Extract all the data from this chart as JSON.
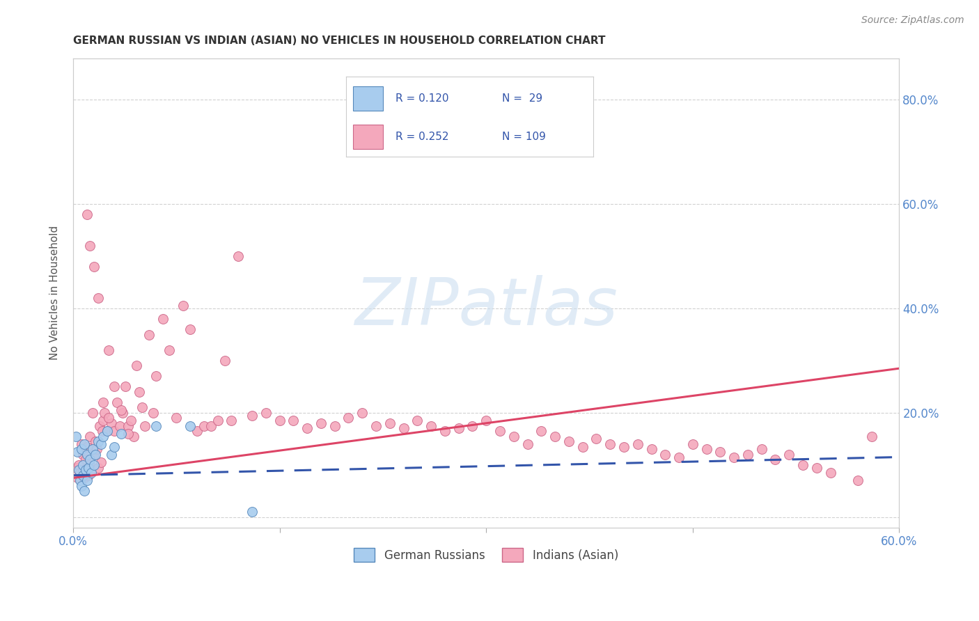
{
  "title": "GERMAN RUSSIAN VS INDIAN (ASIAN) NO VEHICLES IN HOUSEHOLD CORRELATION CHART",
  "source": "Source: ZipAtlas.com",
  "ylabel": "No Vehicles in Household",
  "xlim": [
    0.0,
    0.6
  ],
  "ylim": [
    -0.02,
    0.88
  ],
  "ytick_positions": [
    0.0,
    0.2,
    0.4,
    0.6,
    0.8
  ],
  "ytick_labels": [
    "",
    "20.0%",
    "40.0%",
    "60.0%",
    "80.0%"
  ],
  "xtick_positions": [
    0.0,
    0.15,
    0.3,
    0.45,
    0.6
  ],
  "xtick_labels": [
    "0.0%",
    "",
    "",
    "",
    "60.0%"
  ],
  "watermark": "ZIPatlas",
  "german_russian_x": [
    0.002,
    0.003,
    0.004,
    0.005,
    0.006,
    0.006,
    0.007,
    0.007,
    0.008,
    0.008,
    0.009,
    0.01,
    0.01,
    0.011,
    0.012,
    0.013,
    0.014,
    0.015,
    0.016,
    0.018,
    0.02,
    0.022,
    0.025,
    0.028,
    0.03,
    0.035,
    0.06,
    0.085,
    0.13
  ],
  "german_russian_y": [
    0.155,
    0.125,
    0.09,
    0.07,
    0.13,
    0.06,
    0.1,
    0.08,
    0.14,
    0.05,
    0.09,
    0.07,
    0.12,
    0.095,
    0.11,
    0.085,
    0.13,
    0.1,
    0.12,
    0.145,
    0.14,
    0.155,
    0.165,
    0.12,
    0.135,
    0.16,
    0.175,
    0.175,
    0.01
  ],
  "indian_x": [
    0.002,
    0.003,
    0.004,
    0.005,
    0.006,
    0.007,
    0.007,
    0.008,
    0.009,
    0.01,
    0.01,
    0.011,
    0.012,
    0.012,
    0.013,
    0.014,
    0.015,
    0.016,
    0.017,
    0.018,
    0.019,
    0.02,
    0.021,
    0.022,
    0.023,
    0.025,
    0.026,
    0.028,
    0.03,
    0.032,
    0.034,
    0.036,
    0.038,
    0.04,
    0.042,
    0.044,
    0.046,
    0.048,
    0.05,
    0.052,
    0.055,
    0.058,
    0.06,
    0.065,
    0.07,
    0.075,
    0.08,
    0.085,
    0.09,
    0.095,
    0.1,
    0.105,
    0.11,
    0.115,
    0.12,
    0.13,
    0.14,
    0.15,
    0.16,
    0.17,
    0.18,
    0.19,
    0.2,
    0.21,
    0.22,
    0.23,
    0.24,
    0.25,
    0.26,
    0.27,
    0.28,
    0.29,
    0.3,
    0.31,
    0.32,
    0.33,
    0.34,
    0.35,
    0.36,
    0.37,
    0.38,
    0.39,
    0.4,
    0.41,
    0.42,
    0.43,
    0.44,
    0.45,
    0.46,
    0.47,
    0.48,
    0.49,
    0.5,
    0.51,
    0.52,
    0.53,
    0.54,
    0.55,
    0.57,
    0.01,
    0.012,
    0.015,
    0.018,
    0.022,
    0.026,
    0.03,
    0.035,
    0.04,
    0.58
  ],
  "indian_y": [
    0.095,
    0.075,
    0.1,
    0.085,
    0.14,
    0.09,
    0.12,
    0.075,
    0.11,
    0.095,
    0.135,
    0.08,
    0.1,
    0.155,
    0.09,
    0.2,
    0.12,
    0.145,
    0.13,
    0.095,
    0.175,
    0.105,
    0.165,
    0.185,
    0.2,
    0.165,
    0.32,
    0.18,
    0.165,
    0.22,
    0.175,
    0.2,
    0.25,
    0.175,
    0.185,
    0.155,
    0.29,
    0.24,
    0.21,
    0.175,
    0.35,
    0.2,
    0.27,
    0.38,
    0.32,
    0.19,
    0.405,
    0.36,
    0.165,
    0.175,
    0.175,
    0.185,
    0.3,
    0.185,
    0.5,
    0.195,
    0.2,
    0.185,
    0.185,
    0.17,
    0.18,
    0.175,
    0.19,
    0.2,
    0.175,
    0.18,
    0.17,
    0.185,
    0.175,
    0.165,
    0.17,
    0.175,
    0.185,
    0.165,
    0.155,
    0.14,
    0.165,
    0.155,
    0.145,
    0.135,
    0.15,
    0.14,
    0.135,
    0.14,
    0.13,
    0.12,
    0.115,
    0.14,
    0.13,
    0.125,
    0.115,
    0.12,
    0.13,
    0.11,
    0.12,
    0.1,
    0.095,
    0.085,
    0.07,
    0.58,
    0.52,
    0.48,
    0.42,
    0.22,
    0.19,
    0.25,
    0.205,
    0.16,
    0.155
  ],
  "gr_line_y_start": 0.08,
  "gr_line_y_end": 0.115,
  "indian_line_y_start": 0.075,
  "indian_line_y_end": 0.285,
  "scatter_size": 100,
  "german_russian_color": "#a8ccee",
  "german_russian_edge": "#5588bb",
  "indian_color": "#f4a8bc",
  "indian_edge": "#cc6688",
  "gr_line_color": "#3355aa",
  "indian_line_color": "#dd4466",
  "background_color": "#ffffff",
  "grid_color": "#cccccc",
  "tick_color": "#5588cc",
  "title_color": "#333333",
  "source_color": "#888888",
  "legend_color": "#3355aa"
}
